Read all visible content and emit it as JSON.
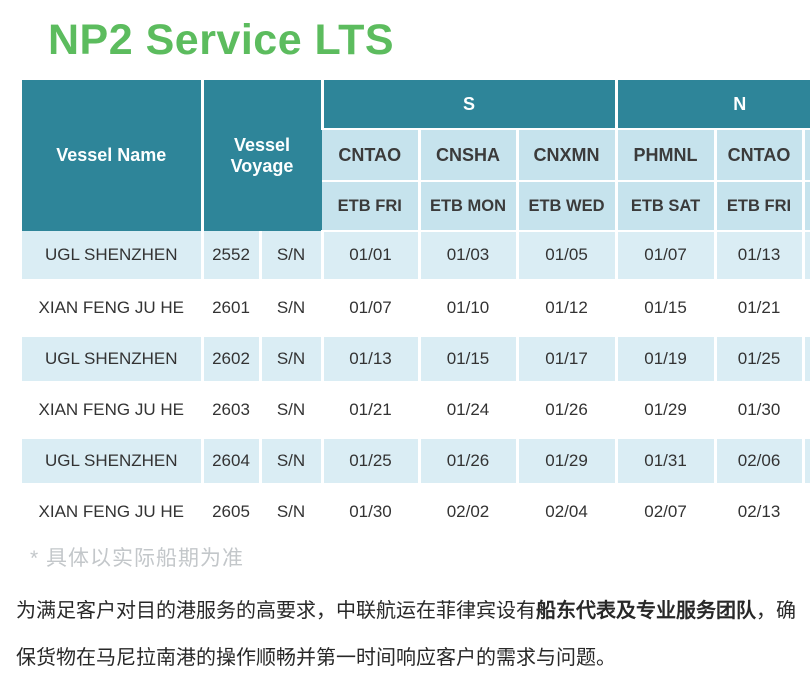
{
  "title": "NP2 Service LTS",
  "colors": {
    "header_teal": "#2E8599",
    "header_blue": "#C6E3ED",
    "stripe_blue": "#DAEDF4",
    "title_green": "#5CBC5E",
    "footnote_gray": "#C3C7CA"
  },
  "chart_data": {
    "type": "table",
    "title": "NP2 Service LTS",
    "columns": [
      "Vessel Name",
      "Vessel Voyage",
      "CNTAO",
      "CNSHA",
      "CNXMN",
      "PHMNL",
      "CNTAO"
    ],
    "rows": [
      [
        "UGL SHENZHEN",
        "2552 S/N",
        "01/01",
        "01/03",
        "01/05",
        "01/07",
        "01/13"
      ],
      [
        "XIAN FENG JU HE",
        "2601 S/N",
        "01/07",
        "01/10",
        "01/12",
        "01/15",
        "01/21"
      ],
      [
        "UGL SHENZHEN",
        "2602 S/N",
        "01/13",
        "01/15",
        "01/17",
        "01/19",
        "01/25"
      ],
      [
        "XIAN FENG JU HE",
        "2603 S/N",
        "01/21",
        "01/24",
        "01/26",
        "01/29",
        "01/30"
      ],
      [
        "UGL SHENZHEN",
        "2604 S/N",
        "01/25",
        "01/26",
        "01/29",
        "01/31",
        "02/06"
      ],
      [
        "XIAN FENG JU HE",
        "2605 S/N",
        "01/30",
        "02/02",
        "02/04",
        "02/07",
        "02/13"
      ]
    ]
  },
  "table": {
    "vessel_name_header": "Vessel Name",
    "vessel_voyage_header": "Vessel Voyage",
    "groups": [
      {
        "label": "S"
      },
      {
        "label": "N"
      }
    ],
    "ports": [
      "CNTAO",
      "CNSHA",
      "CNXMN",
      "PHMNL",
      "CNTAO"
    ],
    "etb": [
      "ETB FRI",
      "ETB MON",
      "ETB WED",
      "ETB SAT",
      "ETB FRI"
    ],
    "rows": [
      {
        "vessel": "UGL SHENZHEN",
        "voyage": "2552",
        "dir": "S/N",
        "dates": [
          "01/01",
          "01/03",
          "01/05",
          "01/07",
          "01/13"
        ]
      },
      {
        "vessel": "XIAN FENG JU HE",
        "voyage": "2601",
        "dir": "S/N",
        "dates": [
          "01/07",
          "01/10",
          "01/12",
          "01/15",
          "01/21"
        ]
      },
      {
        "vessel": "UGL SHENZHEN",
        "voyage": "2602",
        "dir": "S/N",
        "dates": [
          "01/13",
          "01/15",
          "01/17",
          "01/19",
          "01/25"
        ]
      },
      {
        "vessel": "XIAN FENG JU HE",
        "voyage": "2603",
        "dir": "S/N",
        "dates": [
          "01/21",
          "01/24",
          "01/26",
          "01/29",
          "01/30"
        ]
      },
      {
        "vessel": "UGL SHENZHEN",
        "voyage": "2604",
        "dir": "S/N",
        "dates": [
          "01/25",
          "01/26",
          "01/29",
          "01/31",
          "02/06"
        ]
      },
      {
        "vessel": "XIAN FENG JU HE",
        "voyage": "2605",
        "dir": "S/N",
        "dates": [
          "01/30",
          "02/02",
          "02/04",
          "02/07",
          "02/13"
        ]
      }
    ]
  },
  "footnote": "* 具体以实际船期为准",
  "paragraph": {
    "part1": "为满足客户对目的港服务的高要求，中联航运在菲律宾设有",
    "bold": "船东代表及专业服务团队",
    "part2": "，确保货物在马尼拉南港的操作顺畅并第一时间响应客户的需求与问题。"
  }
}
